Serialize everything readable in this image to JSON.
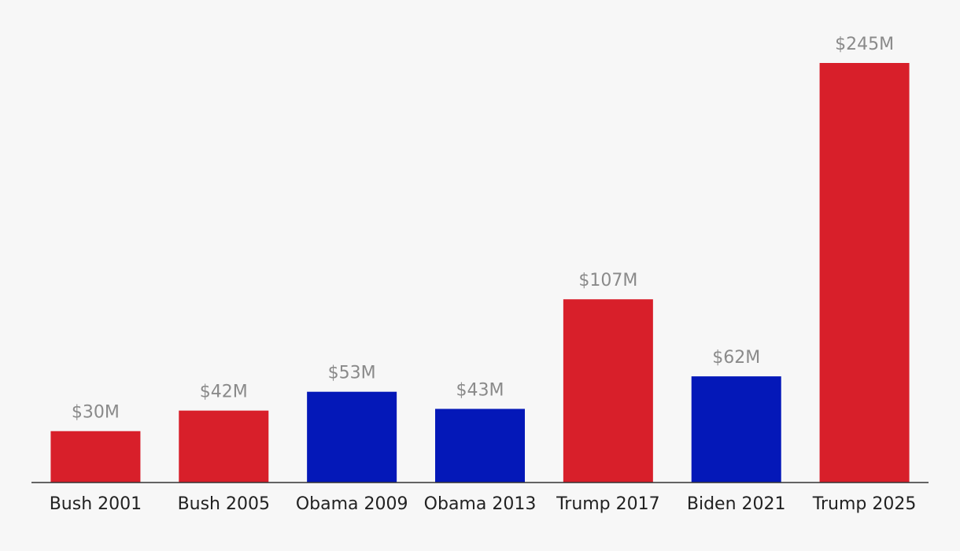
{
  "chart_data": {
    "type": "bar",
    "categories": [
      "Bush 2001",
      "Bush 2005",
      "Obama 2009",
      "Obama 2013",
      "Trump 2017",
      "Biden 2021",
      "Trump 2025"
    ],
    "values": [
      30,
      42,
      53,
      43,
      107,
      62,
      245
    ],
    "value_labels": [
      "$30M",
      "$42M",
      "$53M",
      "$43M",
      "$107M",
      "$62M",
      "$245M"
    ],
    "bar_colors": [
      "#d81f2a",
      "#d81f2a",
      "#0418b8",
      "#0418b8",
      "#d81f2a",
      "#0418b8",
      "#d81f2a"
    ],
    "title": "",
    "xlabel": "",
    "ylabel": "",
    "ylim": [
      0,
      245
    ],
    "grid": false,
    "background": "#f7f7f7",
    "axis_color": "#333333",
    "value_label_color": "#8a8a8a",
    "category_label_color": "#222222"
  }
}
